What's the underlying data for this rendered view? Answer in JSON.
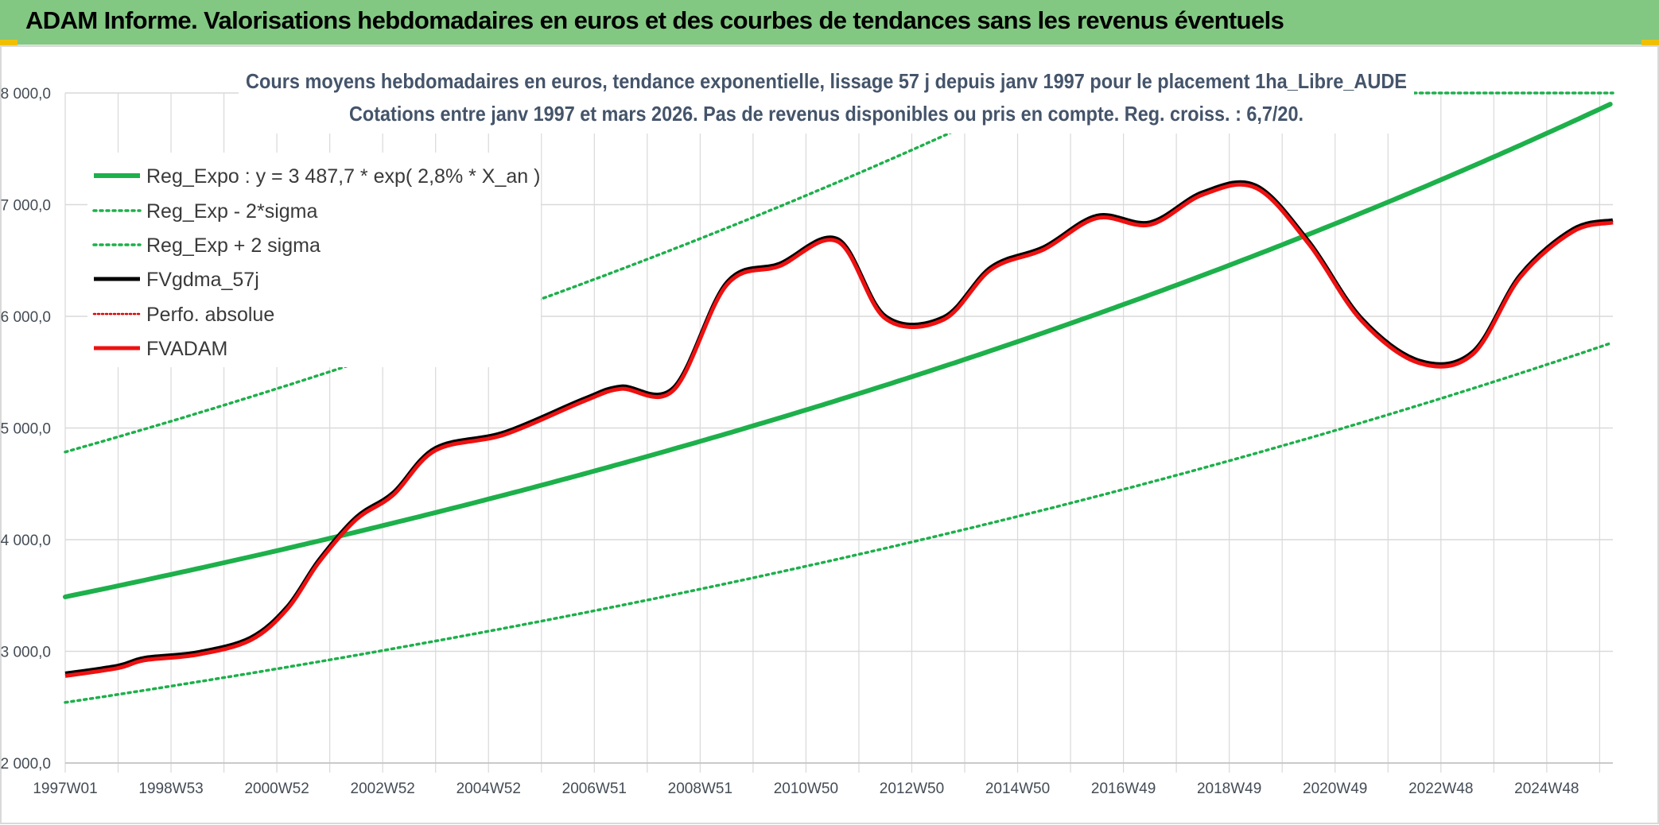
{
  "banner": {
    "title": "ADAM Informe. Valorisations hebdomadaires en euros et des courbes de tendances sans les revenus éventuels",
    "color": "#82c882"
  },
  "chart_data": {
    "type": "line",
    "title_line1": "Cours moyens hebdomadaires en euros, tendance exponentielle, lissage 57 j depuis janv 1997 pour le placement 1ha_Libre_AUDE",
    "title_line2": "Cotations entre janv 1997 et mars 2026. Pas de revenus disponibles ou pris en compte. Reg. croiss. : 6,7/20.",
    "xlabel": "",
    "ylabel": "",
    "x_range_years": [
      1997.0,
      2026.25
    ],
    "ylim": [
      2000,
      8000
    ],
    "y_ticks": [
      {
        "value": 2000,
        "label": "2 000,0"
      },
      {
        "value": 3000,
        "label": "3 000,0"
      },
      {
        "value": 4000,
        "label": "4 000,0"
      },
      {
        "value": 5000,
        "label": "5 000,0"
      },
      {
        "value": 6000,
        "label": "6 000,0"
      },
      {
        "value": 7000,
        "label": "7 000,0"
      },
      {
        "value": 8000,
        "label": "8 000,0"
      }
    ],
    "x_ticks": [
      {
        "year": 1997.0,
        "label": "1997W01"
      },
      {
        "year": 1999.0,
        "label": "1998W53"
      },
      {
        "year": 2001.0,
        "label": "2000W52"
      },
      {
        "year": 2003.0,
        "label": "2002W52"
      },
      {
        "year": 2005.0,
        "label": "2004W52"
      },
      {
        "year": 2007.0,
        "label": "2006W51"
      },
      {
        "year": 2009.0,
        "label": "2008W51"
      },
      {
        "year": 2011.0,
        "label": "2010W50"
      },
      {
        "year": 2013.0,
        "label": "2012W50"
      },
      {
        "year": 2015.0,
        "label": "2014W50"
      },
      {
        "year": 2017.0,
        "label": "2016W49"
      },
      {
        "year": 2019.0,
        "label": "2018W49"
      },
      {
        "year": 2021.0,
        "label": "2020W49"
      },
      {
        "year": 2023.0,
        "label": "2022W48"
      },
      {
        "year": 2025.0,
        "label": "2024W48"
      }
    ],
    "regression": {
      "a": 3487.7,
      "rate": 0.028,
      "sigma_factor": 1.372
    },
    "series": [
      {
        "name": "Reg_Expo : y = 3 487,7 * exp( 2,8% *  X_an )",
        "role": "reg",
        "color": "#1db04b",
        "style": "solid"
      },
      {
        "name": "Reg_Exp - 2*sigma",
        "role": "reg_lower",
        "color": "#1db04b",
        "style": "dotted"
      },
      {
        "name": "Reg_Exp + 2 sigma",
        "role": "reg_upper",
        "color": "#1db04b",
        "style": "dotted"
      },
      {
        "name": "FVgdma_57j",
        "role": "data",
        "color": "#000000",
        "style": "solid"
      },
      {
        "name": "Perfo. absolue",
        "role": "none",
        "color": "#e00000",
        "style": "dotted"
      },
      {
        "name": "FVADAM",
        "role": "data",
        "color": "#ee1111",
        "style": "solid"
      }
    ],
    "fv_points": [
      {
        "year": 1997.0,
        "value": 2780
      },
      {
        "year": 1998.0,
        "value": 2850
      },
      {
        "year": 1998.5,
        "value": 2920
      },
      {
        "year": 1999.5,
        "value": 2970
      },
      {
        "year": 2000.5,
        "value": 3100
      },
      {
        "year": 2001.2,
        "value": 3380
      },
      {
        "year": 2001.8,
        "value": 3800
      },
      {
        "year": 2002.5,
        "value": 4180
      },
      {
        "year": 2003.2,
        "value": 4400
      },
      {
        "year": 2004.0,
        "value": 4800
      },
      {
        "year": 2005.3,
        "value": 4940
      },
      {
        "year": 2006.8,
        "value": 5240
      },
      {
        "year": 2007.5,
        "value": 5350
      },
      {
        "year": 2008.5,
        "value": 5340
      },
      {
        "year": 2009.5,
        "value": 6280
      },
      {
        "year": 2010.5,
        "value": 6450
      },
      {
        "year": 2011.6,
        "value": 6670
      },
      {
        "year": 2012.5,
        "value": 5980
      },
      {
        "year": 2013.6,
        "value": 5970
      },
      {
        "year": 2014.5,
        "value": 6420
      },
      {
        "year": 2015.5,
        "value": 6600
      },
      {
        "year": 2016.5,
        "value": 6880
      },
      {
        "year": 2017.5,
        "value": 6820
      },
      {
        "year": 2018.5,
        "value": 7090
      },
      {
        "year": 2019.5,
        "value": 7150
      },
      {
        "year": 2020.5,
        "value": 6650
      },
      {
        "year": 2021.5,
        "value": 5960
      },
      {
        "year": 2022.6,
        "value": 5580
      },
      {
        "year": 2023.6,
        "value": 5660
      },
      {
        "year": 2024.5,
        "value": 6350
      },
      {
        "year": 2025.5,
        "value": 6760
      },
      {
        "year": 2026.25,
        "value": 6840
      }
    ]
  }
}
